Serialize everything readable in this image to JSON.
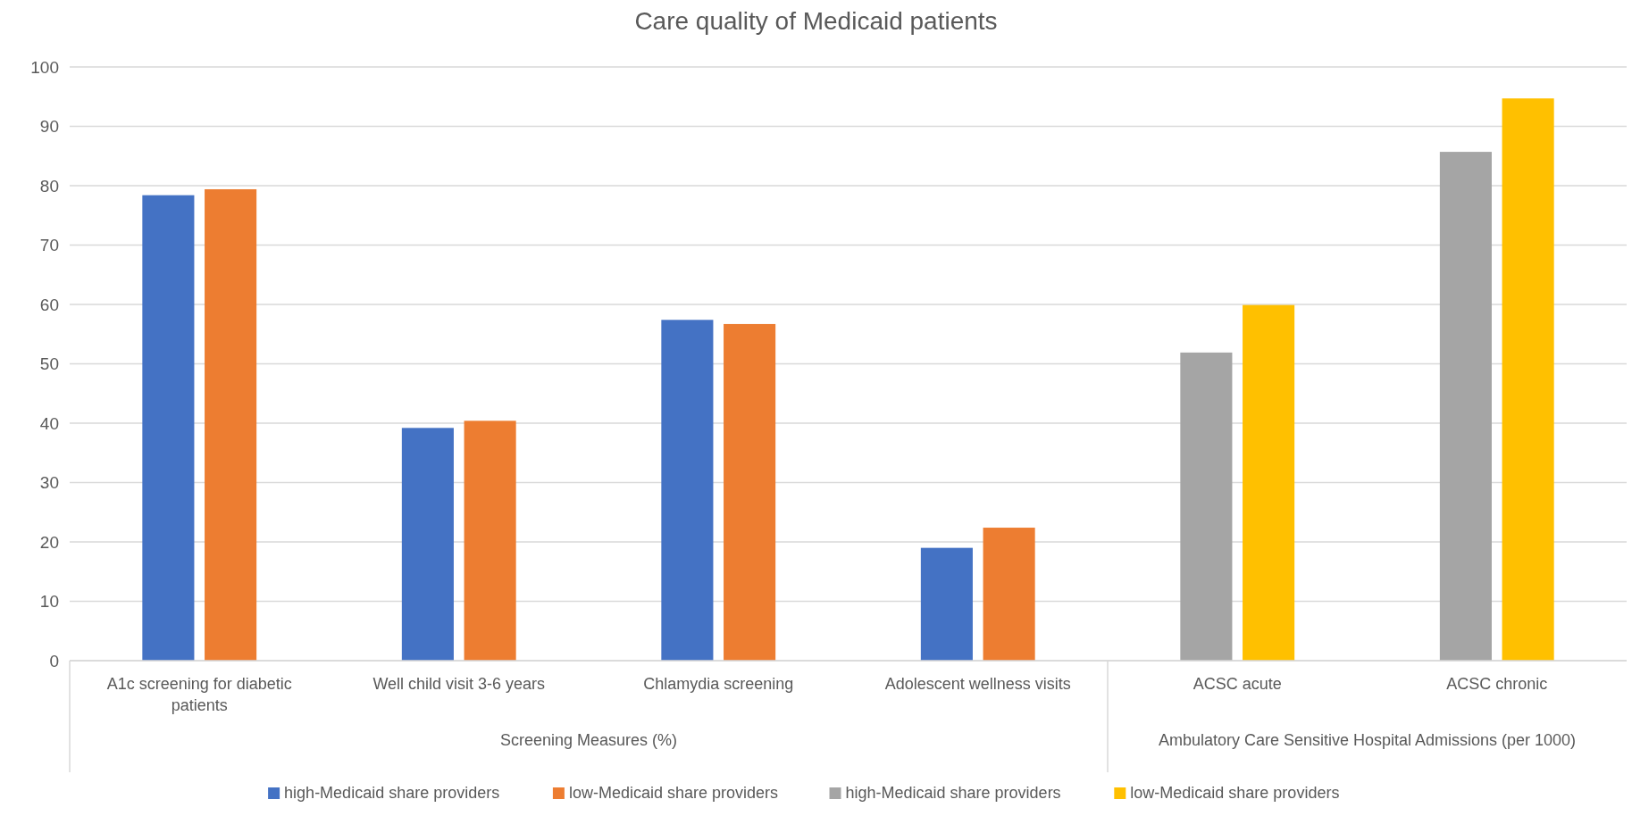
{
  "chart_data": {
    "type": "bar",
    "title": "Care quality of Medicaid patients",
    "categories": [
      "A1c screening for diabetic patients",
      "Well child visit 3-6 years",
      "Chlamydia screening",
      "Adolescent wellness visits",
      "ACSC acute",
      "ACSC chronic"
    ],
    "series": [
      {
        "name": "high-Medicaid share providers",
        "color": "#4472c4",
        "values": [
          78.4,
          39.2,
          57.4,
          19.0,
          null,
          null
        ]
      },
      {
        "name": "low-Medicaid share providers",
        "color": "#ed7d31",
        "values": [
          79.4,
          40.4,
          56.7,
          22.4,
          null,
          null
        ]
      },
      {
        "name": "high-Medicaid share providers",
        "color": "#a5a5a5",
        "values": [
          null,
          null,
          null,
          null,
          51.9,
          85.7
        ]
      },
      {
        "name": "low-Medicaid share providers",
        "color": "#ffc000",
        "values": [
          null,
          null,
          null,
          null,
          59.9,
          94.7
        ]
      }
    ],
    "annotations": [
      "Screening Measures (%)",
      "Ambulatory Care Sensitive Hospital Admissions (per 1000)"
    ],
    "ylim": [
      0,
      100
    ],
    "yticks": [
      0,
      10,
      20,
      30,
      40,
      50,
      60,
      70,
      80,
      90,
      100
    ],
    "grid": "y",
    "legend": "bottom"
  }
}
